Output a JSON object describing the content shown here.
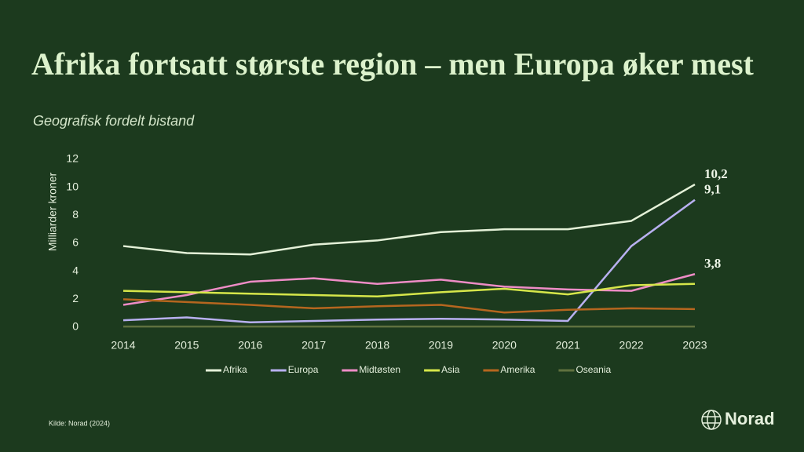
{
  "chart_data": {
    "type": "line",
    "title": "Afrika fortsatt største region – men Europa øker mest",
    "subtitle": "Geografisk fordelt bistand",
    "y_label": "Milliarder kroner",
    "categories": [
      "2014",
      "2015",
      "2016",
      "2017",
      "2018",
      "2019",
      "2020",
      "2021",
      "2022",
      "2023"
    ],
    "series": [
      {
        "name": "Afrika",
        "color": "#e4f1d8",
        "values": [
          5.8,
          5.3,
          5.2,
          5.9,
          6.2,
          6.8,
          7.0,
          7.0,
          7.6,
          10.2
        ],
        "value_labels": [
          null,
          null,
          null,
          null,
          null,
          null,
          null,
          null,
          null,
          "10,2"
        ]
      },
      {
        "name": "Europa",
        "color": "#b8b0f0",
        "values": [
          0.5,
          0.7,
          0.35,
          0.45,
          0.55,
          0.6,
          0.55,
          0.45,
          5.8,
          9.1
        ],
        "value_labels": [
          null,
          null,
          null,
          null,
          null,
          null,
          null,
          null,
          null,
          "9,1"
        ]
      },
      {
        "name": "Midtøsten",
        "color": "#ee8cc6",
        "values": [
          1.6,
          2.3,
          3.25,
          3.5,
          3.1,
          3.4,
          2.9,
          2.7,
          2.6,
          3.8
        ],
        "value_labels": [
          null,
          null,
          null,
          null,
          null,
          null,
          null,
          null,
          null,
          "3,8"
        ]
      },
      {
        "name": "Asia",
        "color": "#d6e64a",
        "values": [
          2.6,
          2.5,
          2.4,
          2.3,
          2.2,
          2.5,
          2.75,
          2.35,
          3.0,
          3.1
        ]
      },
      {
        "name": "Amerika",
        "color": "#b6661f",
        "values": [
          2.0,
          1.8,
          1.6,
          1.35,
          1.5,
          1.6,
          1.05,
          1.25,
          1.35,
          1.3
        ]
      },
      {
        "name": "Oseania",
        "color": "#5f713f",
        "values": [
          0.05,
          0.05,
          0.05,
          0.05,
          0.05,
          0.05,
          0.05,
          0.05,
          0.05,
          0.05
        ]
      }
    ],
    "ylim": [
      0,
      12
    ],
    "yticks": [
      0,
      2,
      4,
      6,
      8,
      10,
      12
    ],
    "grid": false,
    "legend": "bottom"
  },
  "source": "Kilde: Norad (2024)",
  "logo": "Norad"
}
